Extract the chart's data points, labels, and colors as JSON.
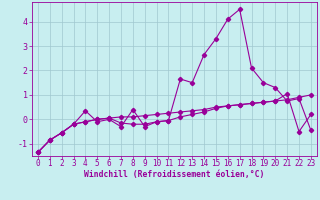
{
  "xlabel": "Windchill (Refroidissement éolien,°C)",
  "xlim": [
    -0.5,
    23.5
  ],
  "ylim": [
    -1.5,
    4.8
  ],
  "xticks": [
    0,
    1,
    2,
    3,
    4,
    5,
    6,
    7,
    8,
    9,
    10,
    11,
    12,
    13,
    14,
    15,
    16,
    17,
    18,
    19,
    20,
    21,
    22,
    23
  ],
  "yticks": [
    -1,
    0,
    1,
    2,
    3,
    4
  ],
  "bg_color": "#c8eef0",
  "line_color": "#990099",
  "grid_color": "#a0c8d0",
  "line1_x": [
    0,
    1,
    2,
    3,
    4,
    5,
    6,
    7,
    8,
    9,
    10,
    11,
    12,
    13,
    14,
    15,
    16,
    17,
    18,
    19,
    20,
    21,
    22,
    23
  ],
  "line1_y": [
    -1.35,
    -0.85,
    -0.55,
    -0.2,
    -0.1,
    0.0,
    0.05,
    0.1,
    0.1,
    0.15,
    0.2,
    0.25,
    0.3,
    0.35,
    0.4,
    0.5,
    0.55,
    0.6,
    0.65,
    0.7,
    0.75,
    0.8,
    0.9,
    1.0
  ],
  "line2_x": [
    0,
    1,
    2,
    3,
    4,
    5,
    6,
    7,
    8,
    9,
    10,
    11,
    12,
    13,
    14,
    15,
    16,
    17,
    18,
    19,
    20,
    21,
    22,
    23
  ],
  "line2_y": [
    -1.35,
    -0.85,
    -0.55,
    -0.2,
    0.35,
    -0.1,
    0.0,
    -0.3,
    0.4,
    -0.3,
    -0.1,
    -0.05,
    1.65,
    1.5,
    2.65,
    3.3,
    4.1,
    4.5,
    2.1,
    1.5,
    1.3,
    0.75,
    0.85,
    -0.45
  ],
  "line3_x": [
    0,
    1,
    2,
    3,
    4,
    5,
    6,
    7,
    8,
    9,
    10,
    11,
    12,
    13,
    14,
    15,
    16,
    17,
    18,
    19,
    20,
    21,
    22,
    23
  ],
  "line3_y": [
    -1.35,
    -0.85,
    -0.55,
    -0.2,
    -0.1,
    0.0,
    0.05,
    -0.15,
    -0.2,
    -0.2,
    -0.1,
    -0.05,
    0.1,
    0.2,
    0.3,
    0.45,
    0.55,
    0.6,
    0.65,
    0.7,
    0.75,
    1.05,
    -0.5,
    0.2
  ],
  "tick_fontsize": 5.5,
  "xlabel_fontsize": 5.8
}
